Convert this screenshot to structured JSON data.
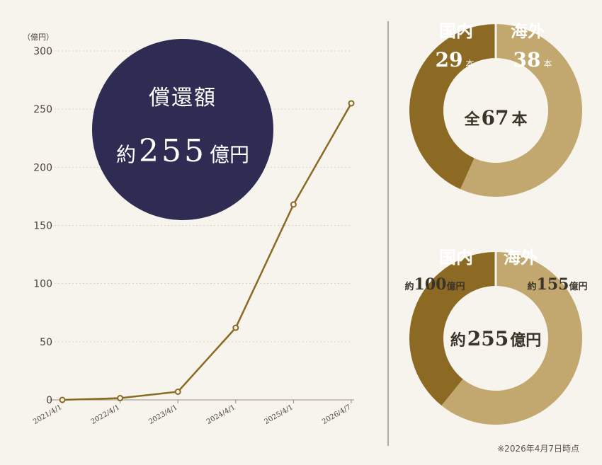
{
  "chart_data": [
    {
      "type": "line",
      "ylabel": "（億円）",
      "ylim": [
        0,
        300
      ],
      "yticks": [
        "0",
        "50",
        "100",
        "150",
        "200",
        "250",
        "300"
      ],
      "x": [
        "2021/4/1",
        "2022/4/1",
        "2023/4/1",
        "2024/4/1",
        "2025/4/1",
        "2026/4/7"
      ],
      "values": [
        0,
        1.5,
        7,
        62,
        168,
        255
      ],
      "grid": true,
      "color": "#8a6a22"
    },
    {
      "type": "pie",
      "labels": [
        "国内",
        "海外"
      ],
      "values": [
        29,
        38
      ],
      "unit": "本",
      "center_prefix": "全",
      "center_value": "67",
      "center_unit": "本",
      "colors": [
        "#8c6a24",
        "#c2a86f"
      ]
    },
    {
      "type": "pie",
      "labels": [
        "国内",
        "海外"
      ],
      "values": [
        100,
        155
      ],
      "prefix": "約",
      "unit": "億円",
      "center_prefix": "約",
      "center_value": "255",
      "center_unit": "億円",
      "colors": [
        "#8c6a24",
        "#c2a86f"
      ]
    }
  ],
  "badge": {
    "title": "償還額",
    "prefix": "約",
    "value": "255",
    "unit": "億円",
    "color": "#2e2c52"
  },
  "note": "※2026年4月7日時点",
  "colors": {
    "background": "#f7f4ed",
    "dark_gold": "#8c6a24",
    "light_gold": "#c2a86f",
    "navy": "#2e2c52"
  }
}
